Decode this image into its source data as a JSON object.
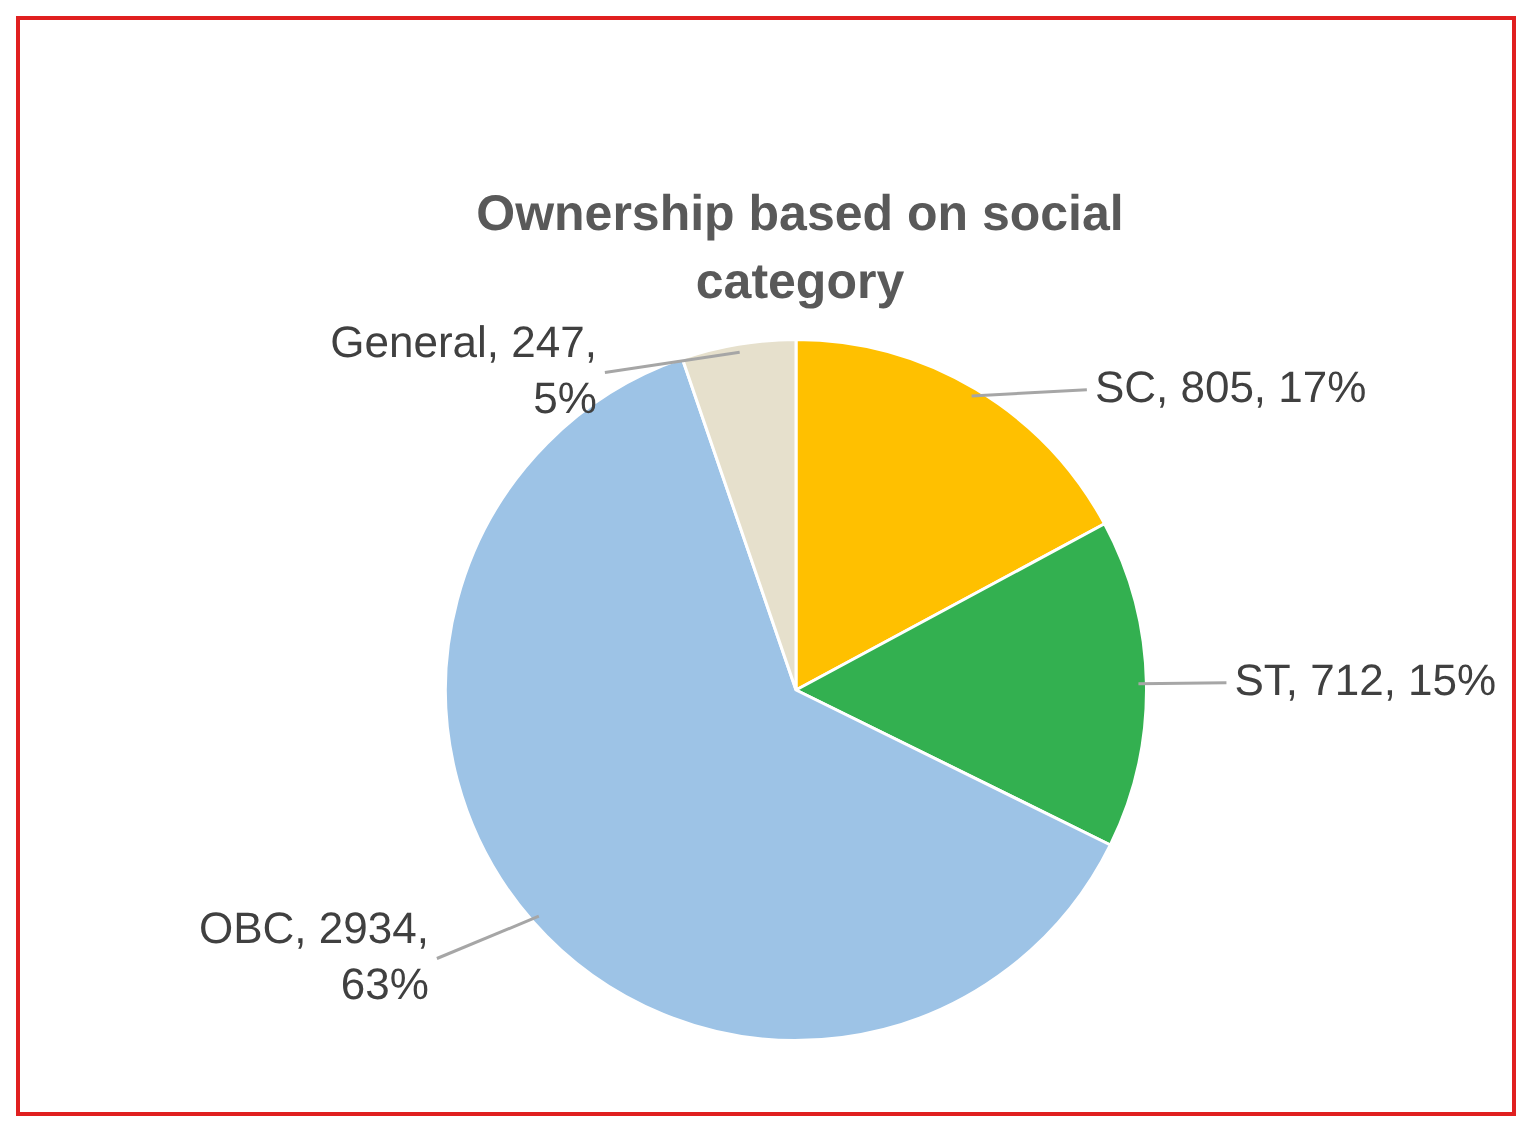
{
  "chart_data": {
    "type": "pie",
    "title": "Ownership based on social category",
    "categories": [
      "SC",
      "ST",
      "OBC",
      "General"
    ],
    "values": [
      805,
      712,
      2934,
      247
    ],
    "colors": [
      "#ffc000",
      "#33b050",
      "#9dc3e6",
      "#e6e0cc"
    ],
    "value_labels": [
      "805, 17%",
      "712, 15%",
      "2934, 63%",
      "247, 5%"
    ],
    "legend": false
  }
}
